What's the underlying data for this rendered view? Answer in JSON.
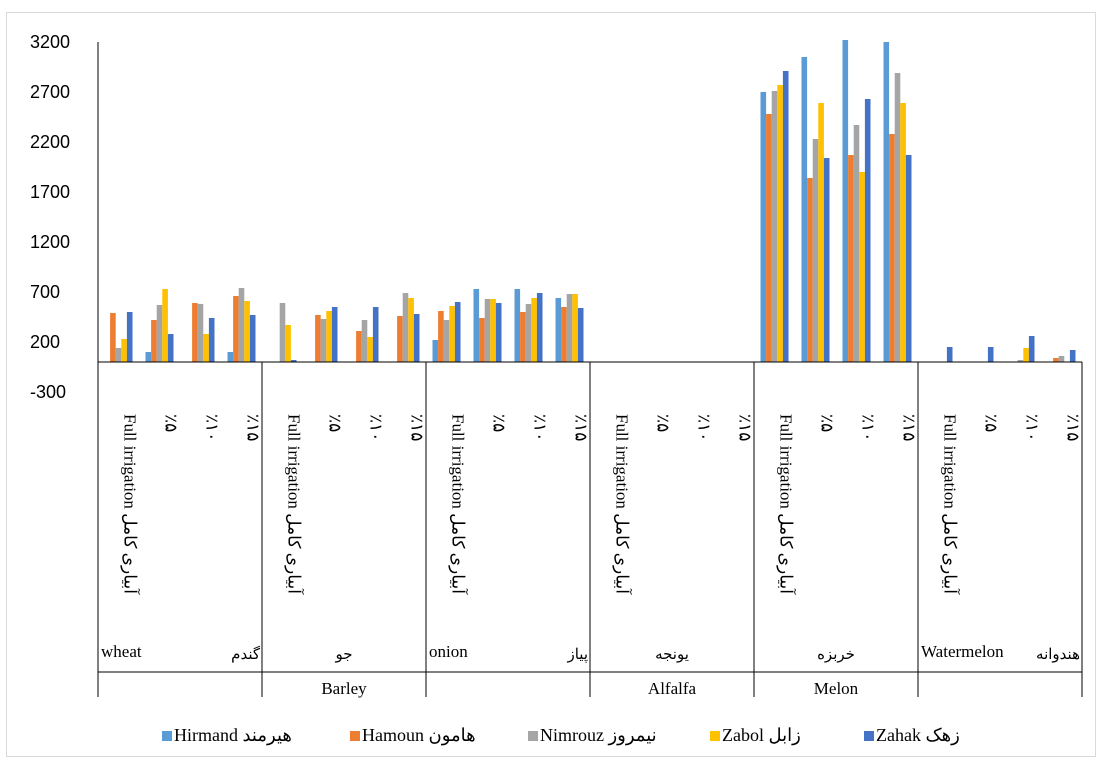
{
  "colors": {
    "axis": "#000000",
    "border": "#d9d9d9",
    "background": "#ffffff"
  },
  "chart_data": {
    "type": "bar",
    "title": "",
    "xlabel": "",
    "ylabel": "",
    "ylim": [
      -300,
      3200
    ],
    "yticks": [
      -300,
      200,
      700,
      1200,
      1700,
      2200,
      2700,
      3200
    ],
    "grid": false,
    "legend_position": "bottom",
    "subcategory_labels": [
      "Full irrigation آبیاری کامل",
      "٪۵",
      "٪۱۰",
      "٪۱۵"
    ],
    "crops": [
      {
        "name_en": "wheat",
        "name_fa": "گندم",
        "bottom_label": ""
      },
      {
        "name_en": "",
        "name_fa": "جو",
        "bottom_label": "Barley"
      },
      {
        "name_en": "onion",
        "name_fa": "پیاز",
        "bottom_label": ""
      },
      {
        "name_en": "",
        "name_fa": "یونجه",
        "bottom_label": "Alfalfa"
      },
      {
        "name_en": "",
        "name_fa": "خربزه",
        "bottom_label": "Melon"
      },
      {
        "name_en": "Watermelon",
        "name_fa": "هندوانه",
        "bottom_label": ""
      }
    ],
    "series": [
      {
        "name": "Hirmand هیرمند",
        "color": "#5b9bd5",
        "values": [
          0,
          100,
          0,
          100,
          0,
          0,
          0,
          0,
          220,
          730,
          730,
          640,
          0,
          0,
          0,
          0,
          2700,
          3050,
          3220,
          3200,
          0,
          0,
          0,
          0
        ]
      },
      {
        "name": "Hamoun هامون",
        "color": "#ed7d31",
        "values": [
          490,
          420,
          590,
          660,
          0,
          470,
          310,
          460,
          510,
          440,
          500,
          550,
          0,
          0,
          0,
          0,
          2480,
          1840,
          2070,
          2280,
          0,
          0,
          0,
          40
        ]
      },
      {
        "name": "Nimrouz نیمروز",
        "color": "#a5a5a5",
        "values": [
          140,
          570,
          580,
          740,
          590,
          430,
          420,
          690,
          420,
          630,
          580,
          680,
          0,
          0,
          0,
          0,
          2710,
          2230,
          2370,
          2890,
          0,
          0,
          20,
          60
        ]
      },
      {
        "name": "Zabol زابل",
        "color": "#ffc000",
        "values": [
          230,
          730,
          280,
          610,
          370,
          510,
          250,
          640,
          560,
          630,
          640,
          680,
          0,
          0,
          0,
          0,
          2770,
          2590,
          1900,
          2590,
          0,
          0,
          140,
          0
        ]
      },
      {
        "name": "Zahak زهک",
        "color": "#4472c4",
        "values": [
          500,
          280,
          440,
          470,
          20,
          550,
          550,
          480,
          600,
          590,
          690,
          540,
          0,
          0,
          0,
          0,
          2910,
          2040,
          2630,
          2070,
          150,
          150,
          260,
          120
        ]
      }
    ]
  }
}
